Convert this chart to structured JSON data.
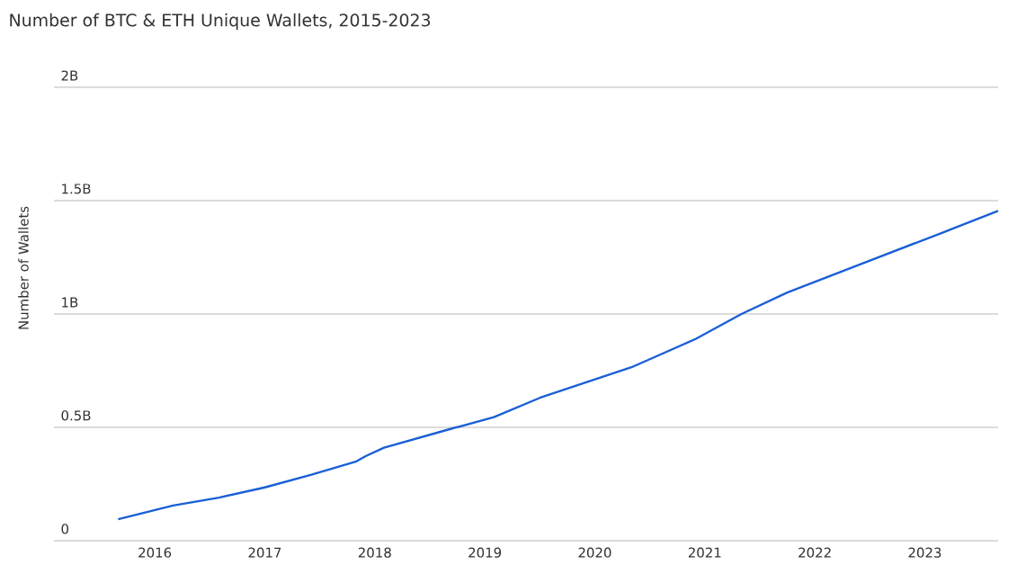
{
  "chart_data": {
    "type": "line",
    "title": "Number of BTC & ETH Unique Wallets, 2015-2023",
    "ylabel": "Number of Wallets",
    "x": [
      "2015-09",
      "2016-03",
      "2016-08",
      "2017-01",
      "2017-06",
      "2017-11",
      "2017-12",
      "2018-02",
      "2018-09",
      "2019-02",
      "2019-07",
      "2020-05",
      "2020-12",
      "2021-05",
      "2021-10",
      "2022-06",
      "2023-03",
      "2023-09"
    ],
    "series": [
      {
        "color": "#1a5fd6",
        "values": [
          0.095,
          0.155,
          0.19,
          0.235,
          0.29,
          0.35,
          0.373,
          0.41,
          0.49,
          0.545,
          0.63,
          0.765,
          0.89,
          1.0,
          1.095,
          1.22,
          1.36,
          1.455
        ]
      }
    ],
    "xlim": [
      "2015-02",
      "2023-09"
    ],
    "xticks": [
      {
        "value": "2016-01",
        "label": "2016"
      },
      {
        "value": "2017-01",
        "label": "2017"
      },
      {
        "value": "2018-01",
        "label": "2018"
      },
      {
        "value": "2019-01",
        "label": "2019"
      },
      {
        "value": "2020-01",
        "label": "2020"
      },
      {
        "value": "2021-01",
        "label": "2021"
      },
      {
        "value": "2022-01",
        "label": "2022"
      },
      {
        "value": "2023-01",
        "label": "2023"
      }
    ],
    "ylim": [
      0,
      2
    ],
    "yticks": [
      0,
      {
        "value": 0.5,
        "label": "0.5B"
      },
      {
        "value": 1,
        "label": "1B"
      },
      {
        "value": 1.5,
        "label": "1.5B"
      },
      {
        "value": 2,
        "label": "2B"
      }
    ],
    "grid": "y",
    "marker": "none",
    "line_style": "solid"
  }
}
